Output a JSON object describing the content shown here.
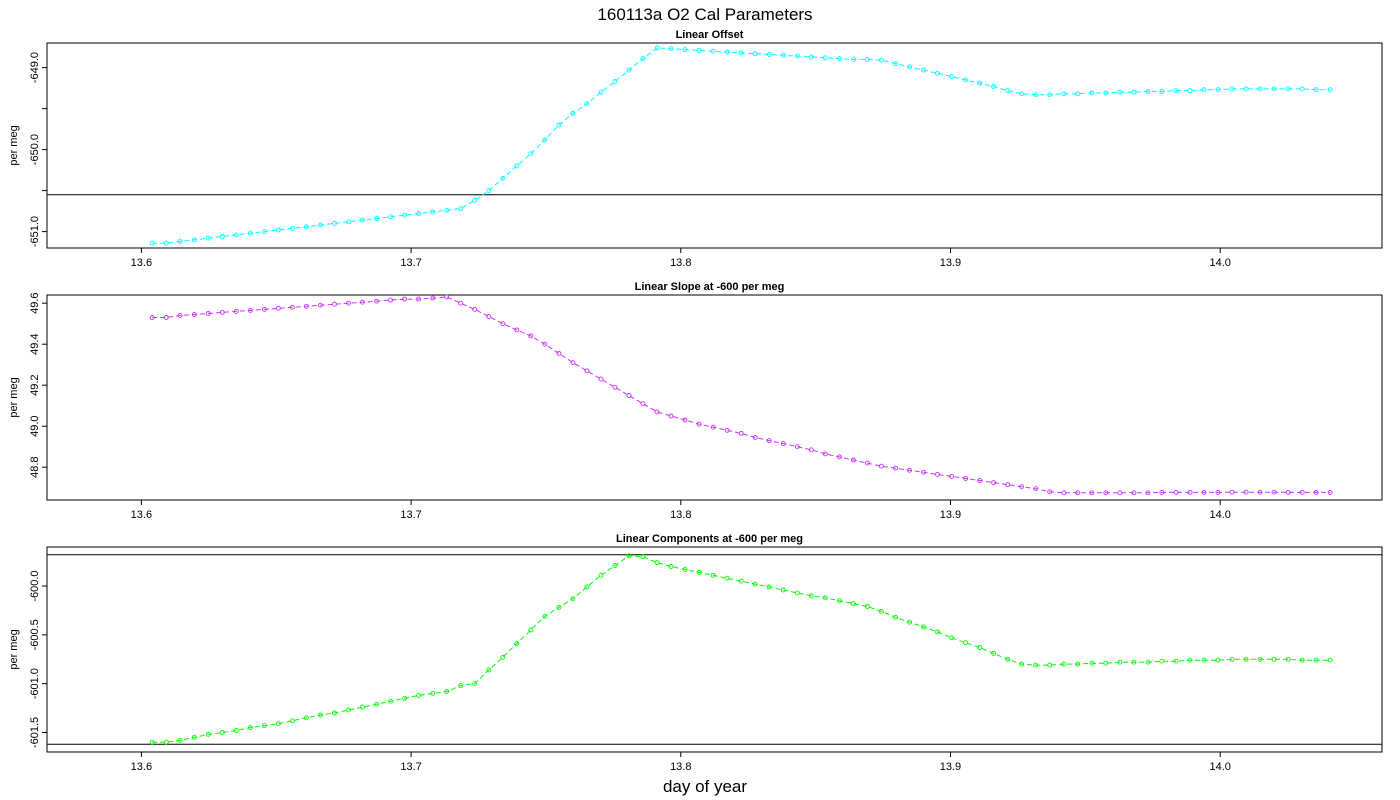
{
  "figure": {
    "title": "160113a   O2 Cal Parameters",
    "xlabel": "day of year"
  },
  "chart_data": [
    {
      "type": "line",
      "title": "Linear Offset",
      "xlabel": "",
      "ylabel": "per meg",
      "color": "#00ffff",
      "xlim": [
        13.565,
        14.06
      ],
      "ylim": [
        -651.2,
        -648.7
      ],
      "x_ticks": [
        13.6,
        13.7,
        13.8,
        13.9,
        14.0
      ],
      "x_tick_labels": [
        "13.6",
        "13.7",
        "13.8",
        "13.9",
        "14.0"
      ],
      "y_ticks": [
        -651.0,
        -650.5,
        -650.0,
        -649.5,
        -649.0
      ],
      "y_tick_labels": [
        "-651.0",
        "",
        "-650.0",
        "",
        "-649.0"
      ],
      "hlines": [
        -650.55
      ],
      "series": [
        {
          "x": [
            13.604,
            13.6092,
            13.6144,
            13.6196,
            13.6248,
            13.63,
            13.6352,
            13.6404,
            13.6456,
            13.6508,
            13.656,
            13.6612,
            13.6664,
            13.6716,
            13.6768,
            13.682,
            13.6872,
            13.6924,
            13.6976,
            13.7028,
            13.708,
            13.7132,
            13.7184,
            13.7236,
            13.7288,
            13.734,
            13.7392,
            13.7444,
            13.7496,
            13.7548,
            13.76,
            13.7652,
            13.7704,
            13.7756,
            13.7808,
            13.786,
            13.7912,
            13.7964,
            13.8016,
            13.8068,
            13.812,
            13.8172,
            13.8224,
            13.8276,
            13.8328,
            13.838,
            13.8432,
            13.8484,
            13.8536,
            13.8588,
            13.864,
            13.8692,
            13.8744,
            13.8796,
            13.8848,
            13.89,
            13.8952,
            13.9004,
            13.9056,
            13.9108,
            13.916,
            13.9212,
            13.9264,
            13.9316,
            13.9368,
            13.942,
            13.9472,
            13.9524,
            13.9576,
            13.9628,
            13.968,
            13.9732,
            13.9784,
            13.9836,
            13.9888,
            13.994,
            13.9992,
            14.0044,
            14.0096,
            14.0148,
            14.02,
            14.0252,
            14.0304,
            14.0356,
            14.0408
          ],
          "y": [
            -651.14,
            -651.14,
            -651.12,
            -651.1,
            -651.08,
            -651.06,
            -651.04,
            -651.02,
            -651.0,
            -650.98,
            -650.96,
            -650.94,
            -650.92,
            -650.9,
            -650.88,
            -650.86,
            -650.84,
            -650.82,
            -650.8,
            -650.78,
            -650.76,
            -650.74,
            -650.72,
            -650.62,
            -650.5,
            -650.35,
            -650.2,
            -650.05,
            -649.88,
            -649.7,
            -649.56,
            -649.44,
            -649.3,
            -649.17,
            -649.03,
            -648.89,
            -648.76,
            -648.77,
            -648.78,
            -648.79,
            -648.8,
            -648.81,
            -648.82,
            -648.83,
            -648.84,
            -648.85,
            -648.86,
            -648.87,
            -648.88,
            -648.89,
            -648.9,
            -648.9,
            -648.91,
            -648.95,
            -648.99,
            -649.03,
            -649.07,
            -649.11,
            -649.15,
            -649.19,
            -649.23,
            -649.28,
            -649.32,
            -649.33,
            -649.33,
            -649.32,
            -649.32,
            -649.31,
            -649.31,
            -649.3,
            -649.3,
            -649.29,
            -649.29,
            -649.28,
            -649.28,
            -649.27,
            -649.27,
            -649.26,
            -649.26,
            -649.26,
            -649.26,
            -649.26,
            -649.26,
            -649.27,
            -649.27
          ]
        }
      ]
    },
    {
      "type": "line",
      "title": "Linear Slope at -600 per meg",
      "xlabel": "",
      "ylabel": "per meg",
      "color": "#cc33ff",
      "xlim": [
        13.565,
        14.06
      ],
      "ylim": [
        48.64,
        49.64
      ],
      "x_ticks": [
        13.6,
        13.7,
        13.8,
        13.9,
        14.0
      ],
      "x_tick_labels": [
        "13.6",
        "13.7",
        "13.8",
        "13.9",
        "14.0"
      ],
      "y_ticks": [
        48.8,
        49.0,
        49.2,
        49.4,
        49.6
      ],
      "y_tick_labels": [
        "48.8",
        "49.0",
        "49.2",
        "49.4",
        "49.6"
      ],
      "hlines": [],
      "series": [
        {
          "x": [
            13.604,
            13.6092,
            13.6144,
            13.6196,
            13.6248,
            13.63,
            13.6352,
            13.6404,
            13.6456,
            13.6508,
            13.656,
            13.6612,
            13.6664,
            13.6716,
            13.6768,
            13.682,
            13.6872,
            13.6924,
            13.6976,
            13.7028,
            13.708,
            13.7132,
            13.7184,
            13.7236,
            13.7288,
            13.734,
            13.7392,
            13.7444,
            13.7496,
            13.7548,
            13.76,
            13.7652,
            13.7704,
            13.7756,
            13.7808,
            13.786,
            13.7912,
            13.7964,
            13.8016,
            13.8068,
            13.812,
            13.8172,
            13.8224,
            13.8276,
            13.8328,
            13.838,
            13.8432,
            13.8484,
            13.8536,
            13.8588,
            13.864,
            13.8692,
            13.8744,
            13.8796,
            13.8848,
            13.89,
            13.8952,
            13.9004,
            13.9056,
            13.9108,
            13.916,
            13.9212,
            13.9264,
            13.9316,
            13.9368,
            13.942,
            13.9472,
            13.9524,
            13.9576,
            13.9628,
            13.968,
            13.9732,
            13.9784,
            13.9836,
            13.9888,
            13.994,
            13.9992,
            14.0044,
            14.0096,
            14.0148,
            14.02,
            14.0252,
            14.0304,
            14.0356,
            14.0408
          ],
          "y": [
            49.53,
            49.53,
            49.54,
            49.545,
            49.55,
            49.555,
            49.56,
            49.565,
            49.57,
            49.575,
            49.58,
            49.585,
            49.59,
            49.595,
            49.6,
            49.605,
            49.61,
            49.615,
            49.62,
            49.62,
            49.625,
            49.63,
            49.6,
            49.57,
            49.535,
            49.5,
            49.47,
            49.44,
            49.4,
            49.355,
            49.31,
            49.27,
            49.23,
            49.19,
            49.15,
            49.11,
            49.07,
            49.05,
            49.03,
            49.01,
            48.995,
            48.98,
            48.965,
            48.945,
            48.93,
            48.915,
            48.9,
            48.885,
            48.865,
            48.85,
            48.835,
            48.82,
            48.805,
            48.795,
            48.785,
            48.775,
            48.765,
            48.755,
            48.745,
            48.735,
            48.725,
            48.715,
            48.705,
            48.695,
            48.68,
            48.675,
            48.675,
            48.675,
            48.675,
            48.675,
            48.675,
            48.675,
            48.677,
            48.677,
            48.677,
            48.677,
            48.677,
            48.678,
            48.678,
            48.678,
            48.678,
            48.677,
            48.677,
            48.677,
            48.677
          ]
        }
      ]
    },
    {
      "type": "line",
      "title": "Linear Components at -600 per meg",
      "xlabel": "",
      "ylabel": "per meg",
      "color": "#00ff00",
      "xlim": [
        13.565,
        14.06
      ],
      "ylim": [
        -601.7,
        -599.6
      ],
      "x_ticks": [
        13.6,
        13.7,
        13.8,
        13.9,
        14.0
      ],
      "x_tick_labels": [
        "13.6",
        "13.7",
        "13.8",
        "13.9",
        "14.0"
      ],
      "y_ticks": [
        -601.5,
        -601.0,
        -600.5,
        -600.0
      ],
      "y_tick_labels": [
        "-601.5",
        "-601.0",
        "-600.5",
        "-600.0"
      ],
      "hlines": [
        -599.68,
        -601.62
      ],
      "series": [
        {
          "x": [
            13.604,
            13.6092,
            13.6144,
            13.6196,
            13.6248,
            13.63,
            13.6352,
            13.6404,
            13.6456,
            13.6508,
            13.656,
            13.6612,
            13.6664,
            13.6716,
            13.6768,
            13.682,
            13.6872,
            13.6924,
            13.6976,
            13.7028,
            13.708,
            13.7132,
            13.7184,
            13.7236,
            13.7288,
            13.734,
            13.7392,
            13.7444,
            13.7496,
            13.7548,
            13.76,
            13.7652,
            13.7704,
            13.7756,
            13.7808,
            13.786,
            13.7912,
            13.7964,
            13.8016,
            13.8068,
            13.812,
            13.8172,
            13.8224,
            13.8276,
            13.8328,
            13.838,
            13.8432,
            13.8484,
            13.8536,
            13.8588,
            13.864,
            13.8692,
            13.8744,
            13.8796,
            13.8848,
            13.89,
            13.8952,
            13.9004,
            13.9056,
            13.9108,
            13.916,
            13.9212,
            13.9264,
            13.9316,
            13.9368,
            13.942,
            13.9472,
            13.9524,
            13.9576,
            13.9628,
            13.968,
            13.9732,
            13.9784,
            13.9836,
            13.9888,
            13.994,
            13.9992,
            14.0044,
            14.0096,
            14.0148,
            14.02,
            14.0252,
            14.0304,
            14.0356,
            14.0408
          ],
          "y": [
            -601.6,
            -601.6,
            -601.58,
            -601.55,
            -601.52,
            -601.5,
            -601.48,
            -601.45,
            -601.43,
            -601.41,
            -601.38,
            -601.35,
            -601.32,
            -601.3,
            -601.27,
            -601.24,
            -601.21,
            -601.18,
            -601.15,
            -601.12,
            -601.1,
            -601.08,
            -601.02,
            -601.0,
            -600.86,
            -600.73,
            -600.59,
            -600.45,
            -600.31,
            -600.22,
            -600.13,
            -600.01,
            -599.89,
            -599.79,
            -599.69,
            -599.7,
            -599.76,
            -599.8,
            -599.83,
            -599.86,
            -599.89,
            -599.92,
            -599.95,
            -599.98,
            -600.01,
            -600.04,
            -600.07,
            -600.1,
            -600.12,
            -600.15,
            -600.18,
            -600.21,
            -600.26,
            -600.32,
            -600.37,
            -600.42,
            -600.47,
            -600.53,
            -600.58,
            -600.63,
            -600.69,
            -600.75,
            -600.8,
            -600.81,
            -600.81,
            -600.8,
            -600.8,
            -600.79,
            -600.79,
            -600.78,
            -600.78,
            -600.78,
            -600.77,
            -600.77,
            -600.76,
            -600.76,
            -600.76,
            -600.75,
            -600.75,
            -600.75,
            -600.75,
            -600.75,
            -600.76,
            -600.76,
            -600.76
          ]
        }
      ]
    }
  ]
}
